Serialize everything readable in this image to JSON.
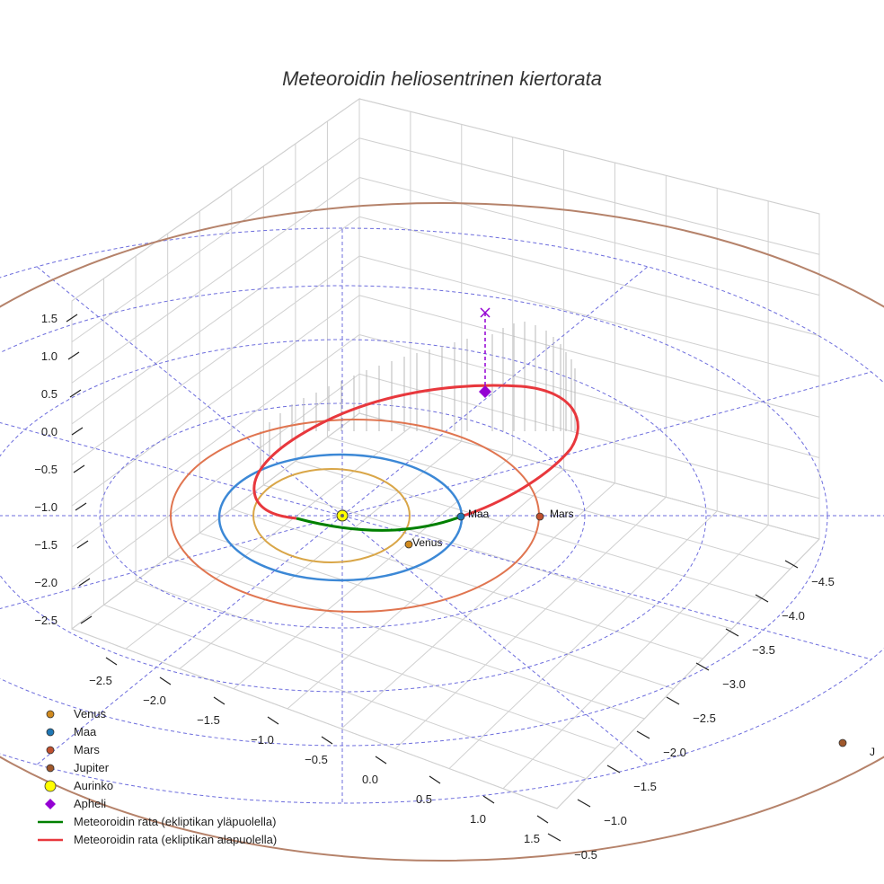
{
  "chart_data": {
    "type": "line",
    "title": "Meteoroidin heliosentrinen kiertorata",
    "z_ticks": [
      "1.5",
      "1.0",
      "0.5",
      "0.0",
      "−0.5",
      "−1.0",
      "−1.5",
      "−2.0",
      "−2.5"
    ],
    "x_ticks": [
      "−2.5",
      "−2.0",
      "−1.5",
      "−1.0",
      "−0.5",
      "0.0",
      "0.5",
      "1.0",
      "1.5"
    ],
    "y_ticks": [
      "−4.5",
      "−4.0",
      "−3.5",
      "−3.0",
      "−2.5",
      "−2.0",
      "−1.5",
      "−1.0",
      "−0.5"
    ],
    "orbit_radii_au": {
      "Venus": 0.72,
      "Maa": 1.0,
      "Mars": 1.52,
      "Jupiter": 5.2
    },
    "planet_labels": {
      "venus": "Venus",
      "maa": "Maa",
      "mars": "Mars",
      "jupiter": "J"
    },
    "legend": [
      {
        "label": "Venus",
        "marker": "dot",
        "color": "#d08a1f"
      },
      {
        "label": "Maa",
        "marker": "dot",
        "color": "#1f77b4"
      },
      {
        "label": "Mars",
        "marker": "dot",
        "color": "#c1502e"
      },
      {
        "label": "Jupiter",
        "marker": "dot",
        "color": "#a0582b"
      },
      {
        "label": "Aurinko",
        "marker": "sun",
        "color": "#ffff00"
      },
      {
        "label": "Apheli",
        "marker": "diamond",
        "color": "#9400d3"
      },
      {
        "label": "Meteoroidin rata (ekliptikan yläpuolella)",
        "marker": "line",
        "color": "#008000"
      },
      {
        "label": "Meteoroidin rata (ekliptikan alapuolella)",
        "marker": "line",
        "color": "#e8383d"
      }
    ],
    "colors": {
      "venus_orbit": "#d9a648",
      "maa_orbit": "#3c88d6",
      "mars_orbit": "#e07550",
      "jupiter_orbit": "#b5826a",
      "above_ecliptic": "#008000",
      "below_ecliptic": "#e8383d",
      "aphelion": "#9400d3",
      "grid_rings": "#6d6ddd"
    },
    "grid": true,
    "legend_position": "bottom-left"
  }
}
